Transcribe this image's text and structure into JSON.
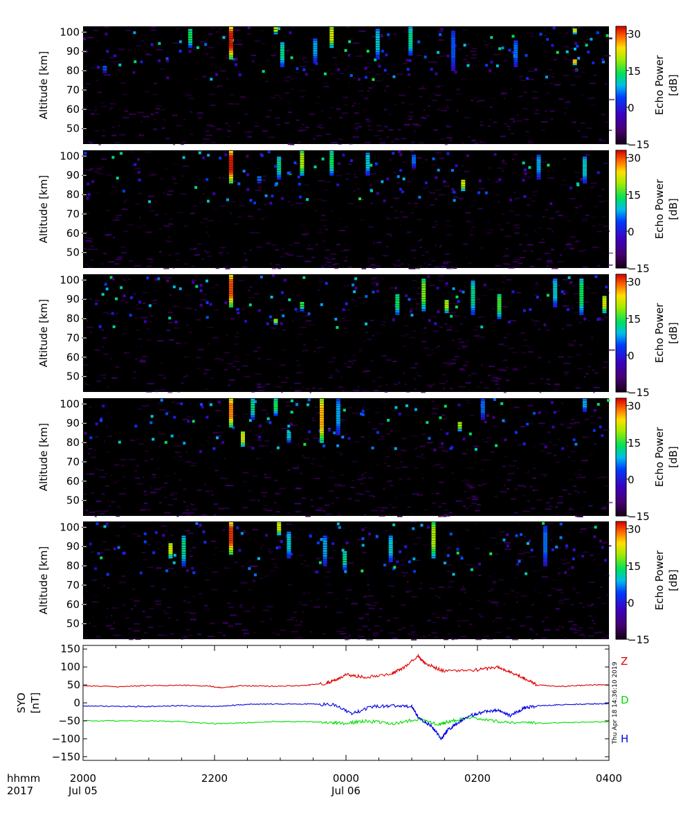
{
  "chart_data": [
    {
      "type": "heatmap",
      "panel": 1,
      "ylabel": "Altitude [km]",
      "yticks": [
        50,
        60,
        70,
        80,
        90,
        100
      ],
      "ylim": [
        42,
        103
      ],
      "colorbar": {
        "label_line1": "Echo Power",
        "label_line2": "[dB]",
        "ticks": [
          30,
          15,
          0,
          -15
        ],
        "range": [
          -15,
          33
        ]
      },
      "xlim_hours": [
        20,
        28
      ],
      "bursts": [
        {
          "t": 22.22,
          "a0": 86,
          "a1": 103,
          "p": 32
        },
        {
          "t": 20.3,
          "a0": 79,
          "a1": 83,
          "p": 5
        },
        {
          "t": 21.6,
          "a0": 92,
          "a1": 102,
          "p": 14
        },
        {
          "t": 22.9,
          "a0": 99,
          "a1": 103,
          "p": 20
        },
        {
          "t": 23.0,
          "a0": 82,
          "a1": 95,
          "p": 12
        },
        {
          "t": 23.5,
          "a0": 84,
          "a1": 97,
          "p": 8
        },
        {
          "t": 23.75,
          "a0": 92,
          "a1": 103,
          "p": 22
        },
        {
          "t": 24.45,
          "a0": 86,
          "a1": 102,
          "p": 10
        },
        {
          "t": 24.95,
          "a0": 88,
          "a1": 103,
          "p": 12
        },
        {
          "t": 25.6,
          "a0": 80,
          "a1": 101,
          "p": 5
        },
        {
          "t": 26.55,
          "a0": 82,
          "a1": 96,
          "p": 6
        },
        {
          "t": 27.45,
          "a0": 83,
          "a1": 86,
          "p": 26
        },
        {
          "t": 27.45,
          "a0": 99,
          "a1": 102,
          "p": 20
        }
      ],
      "noise_seed": 11
    },
    {
      "type": "heatmap",
      "panel": 2,
      "ylabel": "Altitude [km]",
      "yticks": [
        50,
        60,
        70,
        80,
        90,
        100
      ],
      "ylim": [
        42,
        103
      ],
      "colorbar": {
        "label_line1": "Echo Power",
        "label_line2": "[dB]",
        "ticks": [
          30,
          15,
          0,
          -15
        ],
        "range": [
          -15,
          33
        ]
      },
      "xlim_hours": [
        20,
        28
      ],
      "bursts": [
        {
          "t": 22.22,
          "a0": 86,
          "a1": 103,
          "p": 32
        },
        {
          "t": 22.65,
          "a0": 86,
          "a1": 90,
          "p": 6
        },
        {
          "t": 22.95,
          "a0": 88,
          "a1": 100,
          "p": 12
        },
        {
          "t": 23.3,
          "a0": 90,
          "a1": 103,
          "p": 20
        },
        {
          "t": 23.75,
          "a0": 90,
          "a1": 103,
          "p": 14
        },
        {
          "t": 24.3,
          "a0": 90,
          "a1": 102,
          "p": 10
        },
        {
          "t": 25.0,
          "a0": 94,
          "a1": 101,
          "p": 6
        },
        {
          "t": 25.75,
          "a0": 82,
          "a1": 88,
          "p": 22
        },
        {
          "t": 26.9,
          "a0": 88,
          "a1": 101,
          "p": 8
        },
        {
          "t": 27.6,
          "a0": 86,
          "a1": 100,
          "p": 10
        }
      ],
      "noise_seed": 23
    },
    {
      "type": "heatmap",
      "panel": 3,
      "ylabel": "Altitude [km]",
      "yticks": [
        50,
        60,
        70,
        80,
        90,
        100
      ],
      "ylim": [
        42,
        103
      ],
      "colorbar": {
        "label_line1": "Echo Power",
        "label_line2": "[dB]",
        "ticks": [
          30,
          15,
          0,
          -15
        ],
        "range": [
          -15,
          33
        ]
      },
      "xlim_hours": [
        20,
        28
      ],
      "bursts": [
        {
          "t": 22.22,
          "a0": 86,
          "a1": 103,
          "p": 30
        },
        {
          "t": 22.9,
          "a0": 77,
          "a1": 80,
          "p": 18
        },
        {
          "t": 23.3,
          "a0": 84,
          "a1": 89,
          "p": 15
        },
        {
          "t": 24.75,
          "a0": 82,
          "a1": 93,
          "p": 14
        },
        {
          "t": 25.15,
          "a0": 84,
          "a1": 101,
          "p": 18
        },
        {
          "t": 25.5,
          "a0": 83,
          "a1": 90,
          "p": 20
        },
        {
          "t": 25.9,
          "a0": 82,
          "a1": 100,
          "p": 12
        },
        {
          "t": 26.3,
          "a0": 80,
          "a1": 93,
          "p": 16
        },
        {
          "t": 27.15,
          "a0": 86,
          "a1": 101,
          "p": 10
        },
        {
          "t": 27.55,
          "a0": 82,
          "a1": 101,
          "p": 14
        },
        {
          "t": 27.9,
          "a0": 83,
          "a1": 92,
          "p": 22
        }
      ],
      "noise_seed": 37
    },
    {
      "type": "heatmap",
      "panel": 4,
      "ylabel": "Altitude [km]",
      "yticks": [
        50,
        60,
        70,
        80,
        90,
        100
      ],
      "ylim": [
        42,
        103
      ],
      "colorbar": {
        "label_line1": "Echo Power",
        "label_line2": "[dB]",
        "ticks": [
          30,
          15,
          0,
          -15
        ],
        "range": [
          -15,
          33
        ]
      },
      "xlim_hours": [
        20,
        28
      ],
      "bursts": [
        {
          "t": 22.22,
          "a0": 88,
          "a1": 103,
          "p": 28
        },
        {
          "t": 22.4,
          "a0": 78,
          "a1": 86,
          "p": 22
        },
        {
          "t": 22.55,
          "a0": 92,
          "a1": 103,
          "p": 12
        },
        {
          "t": 22.9,
          "a0": 94,
          "a1": 103,
          "p": 14
        },
        {
          "t": 23.1,
          "a0": 80,
          "a1": 86,
          "p": 10
        },
        {
          "t": 23.6,
          "a0": 80,
          "a1": 103,
          "p": 26
        },
        {
          "t": 23.85,
          "a0": 84,
          "a1": 103,
          "p": 8
        },
        {
          "t": 25.7,
          "a0": 86,
          "a1": 91,
          "p": 20
        },
        {
          "t": 26.05,
          "a0": 92,
          "a1": 103,
          "p": 6
        },
        {
          "t": 27.6,
          "a0": 96,
          "a1": 103,
          "p": 8
        }
      ],
      "noise_seed": 51
    },
    {
      "type": "heatmap",
      "panel": 5,
      "ylabel": "Altitude [km]",
      "yticks": [
        50,
        60,
        70,
        80,
        90,
        100
      ],
      "ylim": [
        42,
        103
      ],
      "colorbar": {
        "label_line1": "Echo Power",
        "label_line2": "[dB]",
        "ticks": [
          30,
          15,
          0,
          -15
        ],
        "range": [
          -15,
          33
        ]
      },
      "xlim_hours": [
        20,
        28
      ],
      "bursts": [
        {
          "t": 21.3,
          "a0": 84,
          "a1": 92,
          "p": 22
        },
        {
          "t": 21.5,
          "a0": 80,
          "a1": 96,
          "p": 12
        },
        {
          "t": 22.22,
          "a0": 86,
          "a1": 103,
          "p": 31
        },
        {
          "t": 22.95,
          "a0": 96,
          "a1": 103,
          "p": 22
        },
        {
          "t": 23.1,
          "a0": 84,
          "a1": 98,
          "p": 10
        },
        {
          "t": 23.65,
          "a0": 80,
          "a1": 96,
          "p": 8
        },
        {
          "t": 23.95,
          "a0": 78,
          "a1": 88,
          "p": 12
        },
        {
          "t": 24.65,
          "a0": 82,
          "a1": 96,
          "p": 10
        },
        {
          "t": 25.3,
          "a0": 84,
          "a1": 103,
          "p": 20
        },
        {
          "t": 27.0,
          "a0": 80,
          "a1": 101,
          "p": 6
        }
      ],
      "noise_seed": 67
    },
    {
      "type": "line",
      "panel": 6,
      "ylabel_line1": "SYO",
      "ylabel_line2": "[nT]",
      "yticks": [
        150,
        100,
        50,
        0,
        -50,
        -100,
        -150
      ],
      "ylim": [
        -160,
        160
      ],
      "xlim_hours": [
        20,
        28
      ],
      "series": [
        {
          "name": "Z",
          "color": "#e00000",
          "x": [
            20.0,
            20.5,
            21.0,
            21.5,
            21.9,
            22.1,
            22.4,
            22.9,
            23.4,
            23.7,
            23.85,
            24.0,
            24.3,
            24.7,
            24.85,
            25.1,
            25.2,
            25.5,
            26.0,
            26.3,
            26.5,
            26.7,
            26.9,
            27.3,
            27.7,
            28.0
          ],
          "y": [
            48,
            45,
            48,
            49,
            47,
            42,
            48,
            46,
            49,
            55,
            65,
            78,
            72,
            82,
            95,
            130,
            110,
            88,
            92,
            100,
            85,
            70,
            50,
            46,
            50,
            50
          ]
        },
        {
          "name": "D",
          "color": "#00dd00",
          "x": [
            20.0,
            20.5,
            21.0,
            21.5,
            22.0,
            22.4,
            22.9,
            23.4,
            23.8,
            24.0,
            24.3,
            24.7,
            25.1,
            25.4,
            25.6,
            25.9,
            26.2,
            26.6,
            27.0,
            27.5,
            28.0
          ],
          "y": [
            -50,
            -50,
            -50,
            -52,
            -58,
            -56,
            -52,
            -52,
            -55,
            -57,
            -50,
            -58,
            -45,
            -60,
            -50,
            -42,
            -50,
            -55,
            -57,
            -54,
            -52
          ]
        },
        {
          "name": "H",
          "color": "#0000e0",
          "x": [
            20.0,
            20.5,
            21.0,
            21.5,
            22.0,
            22.4,
            22.9,
            23.4,
            23.8,
            24.1,
            24.4,
            24.7,
            25.0,
            25.1,
            25.3,
            25.45,
            25.55,
            25.7,
            25.9,
            26.1,
            26.3,
            26.5,
            26.7,
            26.9,
            27.3,
            27.7,
            28.0
          ],
          "y": [
            -8,
            -10,
            -10,
            -8,
            -10,
            -5,
            -3,
            -3,
            -5,
            -30,
            -10,
            -8,
            -10,
            -40,
            -65,
            -100,
            -75,
            -55,
            -35,
            -25,
            -20,
            -35,
            -15,
            -8,
            -5,
            -3,
            -2
          ]
        }
      ]
    }
  ],
  "xaxis": {
    "row1_label": "hhmm",
    "row2_label": "2017",
    "ticks": [
      {
        "hour": 20,
        "hhmm": "2000",
        "date": "Jul 05"
      },
      {
        "hour": 22,
        "hhmm": "2200",
        "date": ""
      },
      {
        "hour": 24,
        "hhmm": "0000",
        "date": "Jul 06"
      },
      {
        "hour": 26,
        "hhmm": "0200",
        "date": ""
      },
      {
        "hour": 28,
        "hhmm": "0400",
        "date": ""
      }
    ]
  },
  "timestamp": "Thu Apr 18 14:36:10 2019"
}
